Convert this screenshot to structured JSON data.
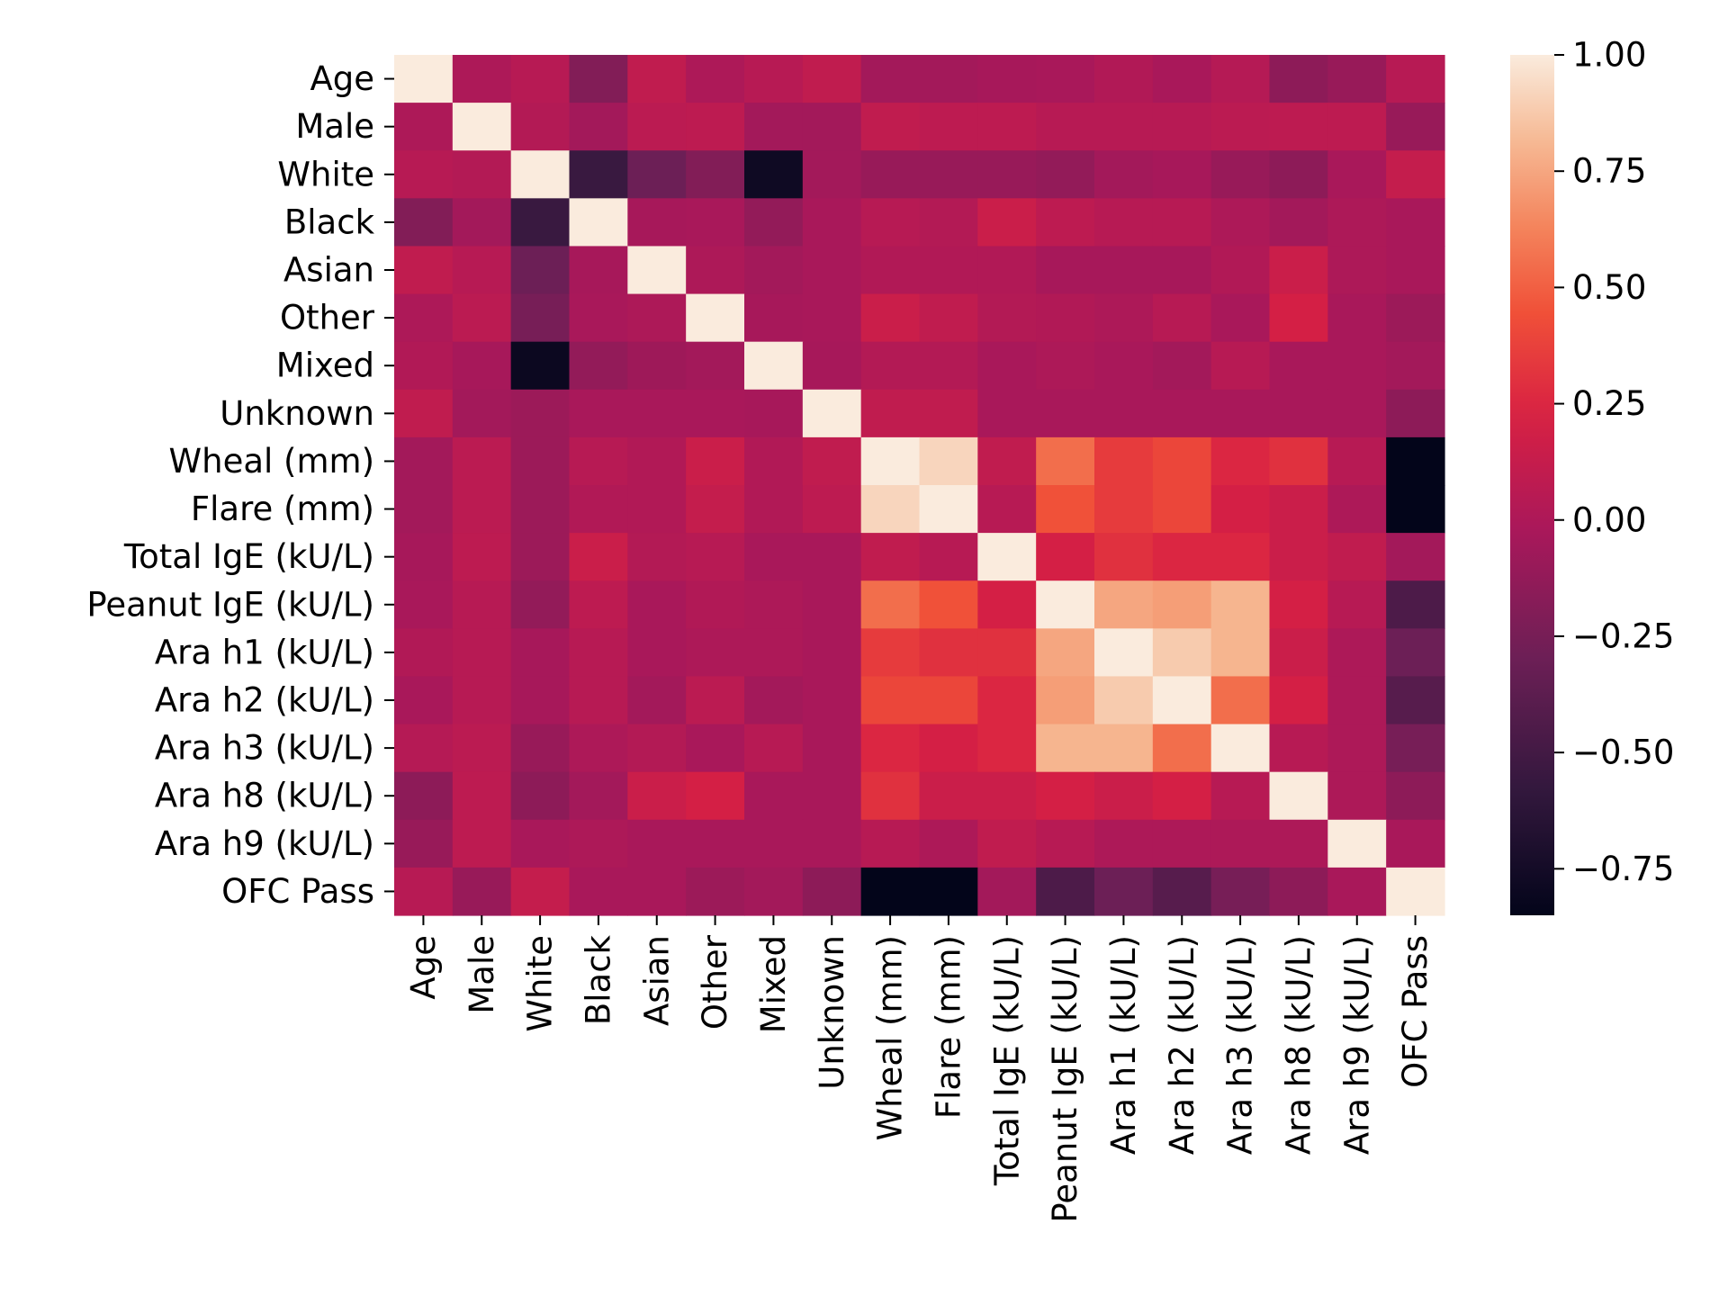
{
  "chart_data": {
    "type": "heatmap",
    "title": "",
    "xlabel": "",
    "ylabel": "",
    "colormap": "rocket",
    "vmin": -0.85,
    "vmax": 1.0,
    "labels": [
      "Age",
      "Male",
      "White",
      "Black",
      "Asian",
      "Other",
      "Mixed",
      "Unknown",
      "Wheal (mm)",
      "Flare (mm)",
      "Total IgE (kU/L)",
      "Peanut IgE (kU/L)",
      "Ara h1 (kU/L)",
      "Ara h2 (kU/L)",
      "Ara h3 (kU/L)",
      "Ara h8 (kU/L)",
      "Ara h9 (kU/L)",
      "OFC Pass"
    ],
    "matrix": [
      [
        1.0,
        0.0,
        0.05,
        -0.2,
        0.1,
        0.0,
        0.05,
        0.1,
        -0.05,
        -0.05,
        -0.03,
        -0.02,
        0.02,
        -0.02,
        0.04,
        -0.15,
        -0.1,
        0.05
      ],
      [
        0.0,
        1.0,
        0.03,
        -0.05,
        0.07,
        0.08,
        -0.05,
        -0.05,
        0.1,
        0.08,
        0.08,
        0.05,
        0.05,
        0.05,
        0.07,
        0.08,
        0.08,
        -0.1
      ],
      [
        0.05,
        0.03,
        1.0,
        -0.55,
        -0.3,
        -0.2,
        -0.78,
        -0.05,
        -0.1,
        -0.1,
        -0.1,
        -0.12,
        -0.05,
        -0.03,
        -0.1,
        -0.15,
        -0.02,
        0.12
      ],
      [
        -0.2,
        -0.05,
        -0.55,
        1.0,
        -0.03,
        -0.02,
        -0.12,
        -0.02,
        0.05,
        0.03,
        0.15,
        0.08,
        0.05,
        0.05,
        0.0,
        -0.05,
        0.0,
        -0.02
      ],
      [
        0.1,
        0.05,
        -0.3,
        -0.03,
        1.0,
        0.0,
        -0.05,
        -0.02,
        0.02,
        0.02,
        0.02,
        -0.03,
        -0.03,
        -0.03,
        0.02,
        0.15,
        0.0,
        -0.02
      ],
      [
        0.0,
        0.07,
        -0.25,
        -0.02,
        0.0,
        1.0,
        -0.03,
        -0.02,
        0.15,
        0.1,
        0.03,
        0.02,
        0.0,
        0.05,
        -0.02,
        0.2,
        -0.02,
        -0.08
      ],
      [
        0.02,
        -0.03,
        -0.8,
        -0.12,
        -0.07,
        -0.05,
        1.0,
        -0.03,
        0.03,
        0.03,
        -0.02,
        0.0,
        -0.02,
        -0.05,
        0.05,
        -0.02,
        -0.02,
        -0.05
      ],
      [
        0.1,
        -0.05,
        -0.08,
        -0.02,
        -0.02,
        -0.02,
        -0.03,
        1.0,
        0.1,
        0.1,
        -0.02,
        -0.02,
        -0.02,
        -0.02,
        -0.02,
        -0.02,
        -0.02,
        -0.15
      ],
      [
        -0.05,
        0.07,
        -0.08,
        0.05,
        0.02,
        0.15,
        0.02,
        0.1,
        1.0,
        0.92,
        0.1,
        0.55,
        0.35,
        0.4,
        0.25,
        0.3,
        0.05,
        -0.85
      ],
      [
        -0.05,
        0.07,
        -0.08,
        0.02,
        0.02,
        0.12,
        0.02,
        0.08,
        0.92,
        1.0,
        0.05,
        0.45,
        0.35,
        0.4,
        0.2,
        0.15,
        0.0,
        -0.85
      ],
      [
        -0.03,
        0.08,
        -0.08,
        0.15,
        0.03,
        0.05,
        -0.02,
        -0.02,
        0.1,
        0.05,
        1.0,
        0.2,
        0.3,
        0.25,
        0.25,
        0.15,
        0.1,
        -0.05
      ],
      [
        -0.02,
        0.05,
        -0.12,
        0.08,
        -0.02,
        0.02,
        0.0,
        -0.02,
        0.55,
        0.45,
        0.2,
        1.0,
        0.75,
        0.72,
        0.8,
        0.2,
        0.05,
        -0.45
      ],
      [
        0.02,
        0.05,
        -0.03,
        0.05,
        -0.02,
        0.0,
        0.0,
        -0.02,
        0.35,
        0.3,
        0.3,
        0.75,
        1.0,
        0.88,
        0.8,
        0.15,
        0.0,
        -0.3
      ],
      [
        -0.02,
        0.05,
        -0.03,
        0.05,
        -0.05,
        0.07,
        -0.05,
        -0.02,
        0.4,
        0.4,
        0.25,
        0.72,
        0.88,
        1.0,
        0.55,
        0.2,
        0.0,
        -0.4
      ],
      [
        0.04,
        0.07,
        -0.1,
        0.0,
        0.03,
        -0.02,
        0.05,
        -0.02,
        0.25,
        0.2,
        0.25,
        0.8,
        0.8,
        0.55,
        1.0,
        0.05,
        0.0,
        -0.25
      ],
      [
        -0.15,
        0.08,
        -0.15,
        -0.05,
        0.15,
        0.2,
        -0.02,
        -0.02,
        0.3,
        0.15,
        0.15,
        0.2,
        0.15,
        0.2,
        0.05,
        1.0,
        0.0,
        -0.15
      ],
      [
        -0.1,
        0.08,
        -0.02,
        0.0,
        -0.02,
        -0.02,
        -0.02,
        -0.02,
        0.05,
        0.0,
        0.1,
        0.05,
        0.0,
        0.0,
        0.0,
        0.0,
        1.0,
        -0.02
      ],
      [
        0.05,
        -0.1,
        0.12,
        -0.02,
        -0.02,
        -0.08,
        -0.05,
        -0.15,
        -0.85,
        -0.85,
        -0.05,
        -0.45,
        -0.3,
        -0.4,
        -0.25,
        -0.15,
        -0.02,
        1.0
      ]
    ],
    "colorbar": {
      "ticks": [
        1.0,
        0.75,
        0.5,
        0.25,
        0.0,
        -0.25,
        -0.5,
        -0.75
      ],
      "tick_labels": [
        "1.00",
        "0.75",
        "0.50",
        "0.25",
        "0.00",
        "−0.25",
        "−0.50",
        "−0.75"
      ]
    },
    "grid": false,
    "legend": "colorbar-right"
  }
}
